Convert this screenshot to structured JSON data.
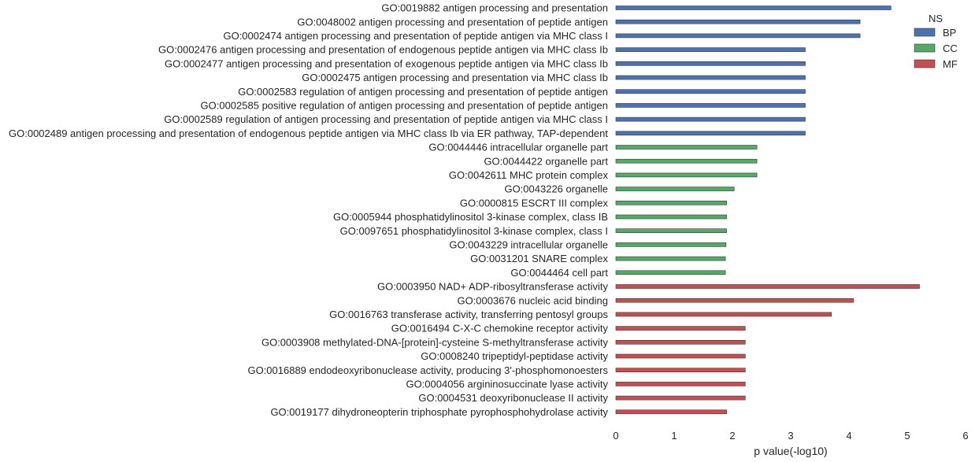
{
  "chart_data": {
    "type": "bar",
    "orientation": "horizontal",
    "xlabel": "p value(-log10)",
    "ylabel": "",
    "xlim": [
      0,
      6
    ],
    "xticks": [
      "0",
      "1",
      "2",
      "3",
      "4",
      "5",
      "6"
    ],
    "grid": false,
    "legend": {
      "title": "NS",
      "placement": "top-right",
      "entries": [
        {
          "name": "BP",
          "color": "#4c72b0"
        },
        {
          "name": "CC",
          "color": "#55a868"
        },
        {
          "name": "MF",
          "color": "#c44e52"
        }
      ]
    },
    "categories": [
      {
        "label": "GO:0019882 antigen processing and presentation",
        "value": 4.72,
        "ns": "BP"
      },
      {
        "label": "GO:0048002 antigen processing and presentation of peptide antigen",
        "value": 4.19,
        "ns": "BP"
      },
      {
        "label": "GO:0002474 antigen processing and presentation of peptide antigen via MHC class I",
        "value": 4.19,
        "ns": "BP"
      },
      {
        "label": "GO:0002476 antigen processing and presentation of endogenous peptide antigen via MHC class Ib",
        "value": 3.25,
        "ns": "BP"
      },
      {
        "label": "GO:0002477 antigen processing and presentation of exogenous peptide antigen via MHC class Ib",
        "value": 3.25,
        "ns": "BP"
      },
      {
        "label": "GO:0002475 antigen processing and presentation via MHC class Ib",
        "value": 3.25,
        "ns": "BP"
      },
      {
        "label": "GO:0002583 regulation of antigen processing and presentation of peptide antigen",
        "value": 3.25,
        "ns": "BP"
      },
      {
        "label": "GO:0002585 positive regulation of antigen processing and presentation of peptide antigen",
        "value": 3.25,
        "ns": "BP"
      },
      {
        "label": "GO:0002589 regulation of antigen processing and presentation of peptide antigen via MHC class I",
        "value": 3.25,
        "ns": "BP"
      },
      {
        "label": "GO:0002489 antigen processing and presentation of endogenous peptide antigen via MHC class Ib via ER pathway, TAP-dependent",
        "value": 3.25,
        "ns": "BP"
      },
      {
        "label": "GO:0044446 intracellular organelle part",
        "value": 2.42,
        "ns": "CC"
      },
      {
        "label": "GO:0044422 organelle part",
        "value": 2.42,
        "ns": "CC"
      },
      {
        "label": "GO:0042611 MHC protein complex",
        "value": 2.42,
        "ns": "CC"
      },
      {
        "label": "GO:0043226 organelle",
        "value": 2.03,
        "ns": "CC"
      },
      {
        "label": "GO:0000815 ESCRT III complex",
        "value": 1.9,
        "ns": "CC"
      },
      {
        "label": "GO:0005944 phosphatidylinositol 3-kinase complex, class IB",
        "value": 1.9,
        "ns": "CC"
      },
      {
        "label": "GO:0097651 phosphatidylinositol 3-kinase complex, class I",
        "value": 1.9,
        "ns": "CC"
      },
      {
        "label": "GO:0043229 intracellular organelle",
        "value": 1.89,
        "ns": "CC"
      },
      {
        "label": "GO:0031201 SNARE complex",
        "value": 1.88,
        "ns": "CC"
      },
      {
        "label": "GO:0044464 cell part",
        "value": 1.88,
        "ns": "CC"
      },
      {
        "label": "GO:0003950 NAD+ ADP-ribosyltransferase activity",
        "value": 5.21,
        "ns": "MF"
      },
      {
        "label": "GO:0003676 nucleic acid binding",
        "value": 4.08,
        "ns": "MF"
      },
      {
        "label": "GO:0016763 transferase activity, transferring pentosyl groups",
        "value": 3.7,
        "ns": "MF"
      },
      {
        "label": "GO:0016494 C-X-C chemokine receptor activity",
        "value": 2.22,
        "ns": "MF"
      },
      {
        "label": "GO:0003908 methylated-DNA-[protein]-cysteine S-methyltransferase activity",
        "value": 2.22,
        "ns": "MF"
      },
      {
        "label": "GO:0008240 tripeptidyl-peptidase activity",
        "value": 2.22,
        "ns": "MF"
      },
      {
        "label": "GO:0016889 endodeoxyribonuclease activity, producing 3'-phosphomonoesters",
        "value": 2.22,
        "ns": "MF"
      },
      {
        "label": "GO:0004056 argininosuccinate lyase activity",
        "value": 2.22,
        "ns": "MF"
      },
      {
        "label": "GO:0004531 deoxyribonuclease II activity",
        "value": 2.22,
        "ns": "MF"
      },
      {
        "label": "GO:0019177 dihydroneopterin triphosphate pyrophosphohydrolase activity",
        "value": 1.9,
        "ns": "MF"
      }
    ]
  }
}
